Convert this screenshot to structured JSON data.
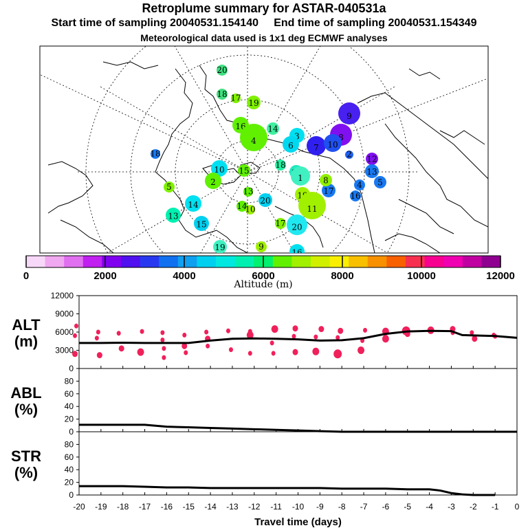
{
  "title": {
    "line1": "Retroplume summary for ASTAR-040531a",
    "line2": "Start time of sampling 20040531.154140     End time of sampling 20040531.154349",
    "line3": "Meteorological data used is 1x1 deg ECMWF analyses"
  },
  "colorbar": {
    "label": "Altitude  (m)",
    "tick_labels": [
      "0",
      "2000",
      "4000",
      "6000",
      "8000",
      "10000",
      "12000"
    ],
    "colors": [
      "#f8d8f8",
      "#f0a8f0",
      "#e070f0",
      "#c020f0",
      "#8000f0",
      "#5010f0",
      "#2838f0",
      "#1070f0",
      "#10a0f0",
      "#00d0f0",
      "#00e8e0",
      "#00f0b0",
      "#00f070",
      "#60f000",
      "#a0f000",
      "#d0f000",
      "#f8f000",
      "#f8c000",
      "#f89000",
      "#f86000",
      "#f83050",
      "#f80090",
      "#f000b0",
      "#c000a0",
      "#900090"
    ]
  },
  "map_labels": [
    {
      "t": "20",
      "c": "#40e080"
    },
    {
      "t": "18",
      "c": "#40e080"
    },
    {
      "t": "17",
      "c": "#80f000"
    },
    {
      "t": "19",
      "c": "#80f000"
    },
    {
      "t": "16",
      "c": "#60f000"
    },
    {
      "t": "4",
      "c": "#60f000"
    },
    {
      "t": "14",
      "c": "#40f0a0"
    },
    {
      "t": "3",
      "c": "#00e0f0"
    },
    {
      "t": "6",
      "c": "#00d8f0"
    },
    {
      "t": "9",
      "c": "#4820f0"
    },
    {
      "t": "8",
      "c": "#8010f0"
    },
    {
      "t": "7",
      "c": "#3020f0"
    },
    {
      "t": "10",
      "c": "#2050f0"
    },
    {
      "t": "2",
      "c": "#2060f0"
    },
    {
      "t": "12",
      "c": "#8010f0"
    },
    {
      "t": "13",
      "c": "#1878f0"
    },
    {
      "t": "5",
      "c": "#1878f0"
    },
    {
      "t": "4",
      "c": "#1878f0"
    },
    {
      "t": "16",
      "c": "#1878f0"
    },
    {
      "t": "17",
      "c": "#1878f0"
    },
    {
      "t": "19",
      "c": "#20e8c0"
    },
    {
      "t": "15",
      "c": "#60f000"
    },
    {
      "t": "18",
      "c": "#20f0a0"
    },
    {
      "t": "1",
      "c": "#40f0c0"
    },
    {
      "t": "8",
      "c": "#90f000"
    },
    {
      "t": "19",
      "c": "#a0f000"
    },
    {
      "t": "11",
      "c": "#a0f000"
    },
    {
      "t": "20",
      "c": "#20e8f0"
    },
    {
      "t": "13",
      "c": "#00f0b0"
    },
    {
      "t": "14",
      "c": "#00e0f0"
    },
    {
      "t": "15",
      "c": "#00d0f0"
    },
    {
      "t": "20",
      "c": "#00d0f0"
    },
    {
      "t": "14",
      "c": "#60f000"
    },
    {
      "t": "13",
      "c": "#60f000"
    },
    {
      "t": "10",
      "c": "#a0f000"
    },
    {
      "t": "17",
      "c": "#80f000"
    },
    {
      "t": "19",
      "c": "#40f0c0"
    },
    {
      "t": "9",
      "c": "#a0f000"
    },
    {
      "t": "16",
      "c": "#00e0f0"
    },
    {
      "t": "10",
      "c": "#00e0f0"
    },
    {
      "t": "18",
      "c": "#1878f0"
    },
    {
      "t": "2",
      "c": "#60f000"
    },
    {
      "t": "5",
      "c": "#80f000"
    }
  ],
  "chart_data": [
    {
      "type": "scatter+line",
      "panel": "ALT",
      "ylabel_line1": "ALT",
      "ylabel_line2": "(m)",
      "ylim": [
        0,
        12000
      ],
      "y_ticks": [
        "0",
        "3000",
        "6000",
        "9000",
        "12000"
      ],
      "xlim": [
        -20,
        0
      ],
      "line_x": [
        -20,
        -19,
        -18,
        -17,
        -16,
        -15,
        -14,
        -13,
        -12,
        -11,
        -10,
        -9,
        -8,
        -7,
        -6,
        -5,
        -4,
        -3,
        -2.5,
        -2,
        -1,
        0
      ],
      "line_y": [
        4200,
        4200,
        4250,
        4200,
        4200,
        4200,
        4600,
        4900,
        4950,
        4900,
        4800,
        4600,
        4650,
        5000,
        5700,
        6100,
        6200,
        6150,
        5500,
        5450,
        5350,
        5050
      ],
      "points": [
        {
          "x": -20,
          "y": 7000,
          "s": 2
        },
        {
          "x": -20,
          "y": 5400,
          "s": 2
        },
        {
          "x": -20,
          "y": 2400,
          "s": 3
        },
        {
          "x": -19,
          "y": 6000,
          "s": 2
        },
        {
          "x": -19,
          "y": 5000,
          "s": 2
        },
        {
          "x": -19,
          "y": 2200,
          "s": 3
        },
        {
          "x": -18,
          "y": 5800,
          "s": 2
        },
        {
          "x": -18,
          "y": 3300,
          "s": 3
        },
        {
          "x": -17,
          "y": 6100,
          "s": 2
        },
        {
          "x": -17,
          "y": 2700,
          "s": 4
        },
        {
          "x": -16,
          "y": 5900,
          "s": 2
        },
        {
          "x": -16,
          "y": 4700,
          "s": 2
        },
        {
          "x": -16,
          "y": 3300,
          "s": 2
        },
        {
          "x": -16,
          "y": 1800,
          "s": 2
        },
        {
          "x": -15,
          "y": 5500,
          "s": 2
        },
        {
          "x": -15,
          "y": 3700,
          "s": 3
        },
        {
          "x": -15,
          "y": 2600,
          "s": 2
        },
        {
          "x": -14,
          "y": 6000,
          "s": 2
        },
        {
          "x": -14,
          "y": 4900,
          "s": 3
        },
        {
          "x": -14,
          "y": 3700,
          "s": 2
        },
        {
          "x": -13,
          "y": 6200,
          "s": 2
        },
        {
          "x": -13,
          "y": 3100,
          "s": 2
        },
        {
          "x": -12,
          "y": 6100,
          "s": 2
        },
        {
          "x": -12,
          "y": 5500,
          "s": 4
        },
        {
          "x": -12,
          "y": 2500,
          "s": 2
        },
        {
          "x": -11,
          "y": 6500,
          "s": 4
        },
        {
          "x": -11,
          "y": 4200,
          "s": 2
        },
        {
          "x": -11,
          "y": 2500,
          "s": 2
        },
        {
          "x": -10,
          "y": 6600,
          "s": 3
        },
        {
          "x": -10,
          "y": 5300,
          "s": 2
        },
        {
          "x": -10,
          "y": 2700,
          "s": 3
        },
        {
          "x": -9,
          "y": 6500,
          "s": 3
        },
        {
          "x": -9,
          "y": 5200,
          "s": 2
        },
        {
          "x": -9,
          "y": 2800,
          "s": 4
        },
        {
          "x": -8,
          "y": 6200,
          "s": 3
        },
        {
          "x": -8,
          "y": 5100,
          "s": 2
        },
        {
          "x": -8,
          "y": 2400,
          "s": 5
        },
        {
          "x": -7,
          "y": 6300,
          "s": 2
        },
        {
          "x": -7,
          "y": 4600,
          "s": 2
        },
        {
          "x": -7,
          "y": 3000,
          "s": 4
        },
        {
          "x": -6,
          "y": 6100,
          "s": 4
        },
        {
          "x": -6,
          "y": 4900,
          "s": 4
        },
        {
          "x": -5,
          "y": 6200,
          "s": 5
        },
        {
          "x": -5,
          "y": 5700,
          "s": 3
        },
        {
          "x": -4,
          "y": 6300,
          "s": 4
        },
        {
          "x": -3,
          "y": 6500,
          "s": 3
        },
        {
          "x": -3,
          "y": 5900,
          "s": 2
        },
        {
          "x": -2,
          "y": 5900,
          "s": 2
        },
        {
          "x": -2,
          "y": 4900,
          "s": 3
        },
        {
          "x": -1,
          "y": 5500,
          "s": 2
        },
        {
          "x": -1,
          "y": 5300,
          "s": 2
        }
      ]
    },
    {
      "type": "line",
      "panel": "ABL",
      "ylabel_line1": "ABL",
      "ylabel_line2": "(%)",
      "ylim": [
        0,
        100
      ],
      "y_ticks": [
        "0",
        "20",
        "40",
        "60",
        "80"
      ],
      "x": [
        -20,
        -17,
        -16,
        -15,
        -14,
        -13,
        -12,
        -11,
        -10,
        -9,
        -8,
        0
      ],
      "y": [
        11,
        11,
        8,
        7,
        6,
        5,
        4,
        3,
        2,
        1,
        0,
        0
      ]
    },
    {
      "type": "line",
      "panel": "STR",
      "ylabel_line1": "STR",
      "ylabel_line2": "(%)",
      "ylim": [
        0,
        100
      ],
      "y_ticks": [
        "0",
        "20",
        "40",
        "60",
        "80"
      ],
      "x": [
        -20,
        -18,
        -17,
        -16,
        -15,
        -14,
        -13,
        -12,
        -11,
        -10,
        -9,
        -8,
        -7,
        -6,
        -5,
        -4,
        -3.5,
        -3,
        -2.5,
        -2,
        -1
      ],
      "y": [
        14,
        14,
        13,
        12,
        12,
        11,
        11,
        11,
        11,
        11,
        11,
        10,
        10,
        10,
        9,
        9,
        7,
        3,
        1,
        0,
        0
      ],
      "xlabel": "Travel time (days)",
      "x_tick_labels": [
        "-20",
        "-19",
        "-18",
        "-17",
        "-16",
        "-15",
        "-14",
        "-13",
        "-12",
        "-11",
        "-10",
        "-9",
        "-8",
        "-7",
        "-6",
        "-5",
        "-4",
        "-3",
        "-2",
        "-1",
        "0"
      ]
    }
  ]
}
